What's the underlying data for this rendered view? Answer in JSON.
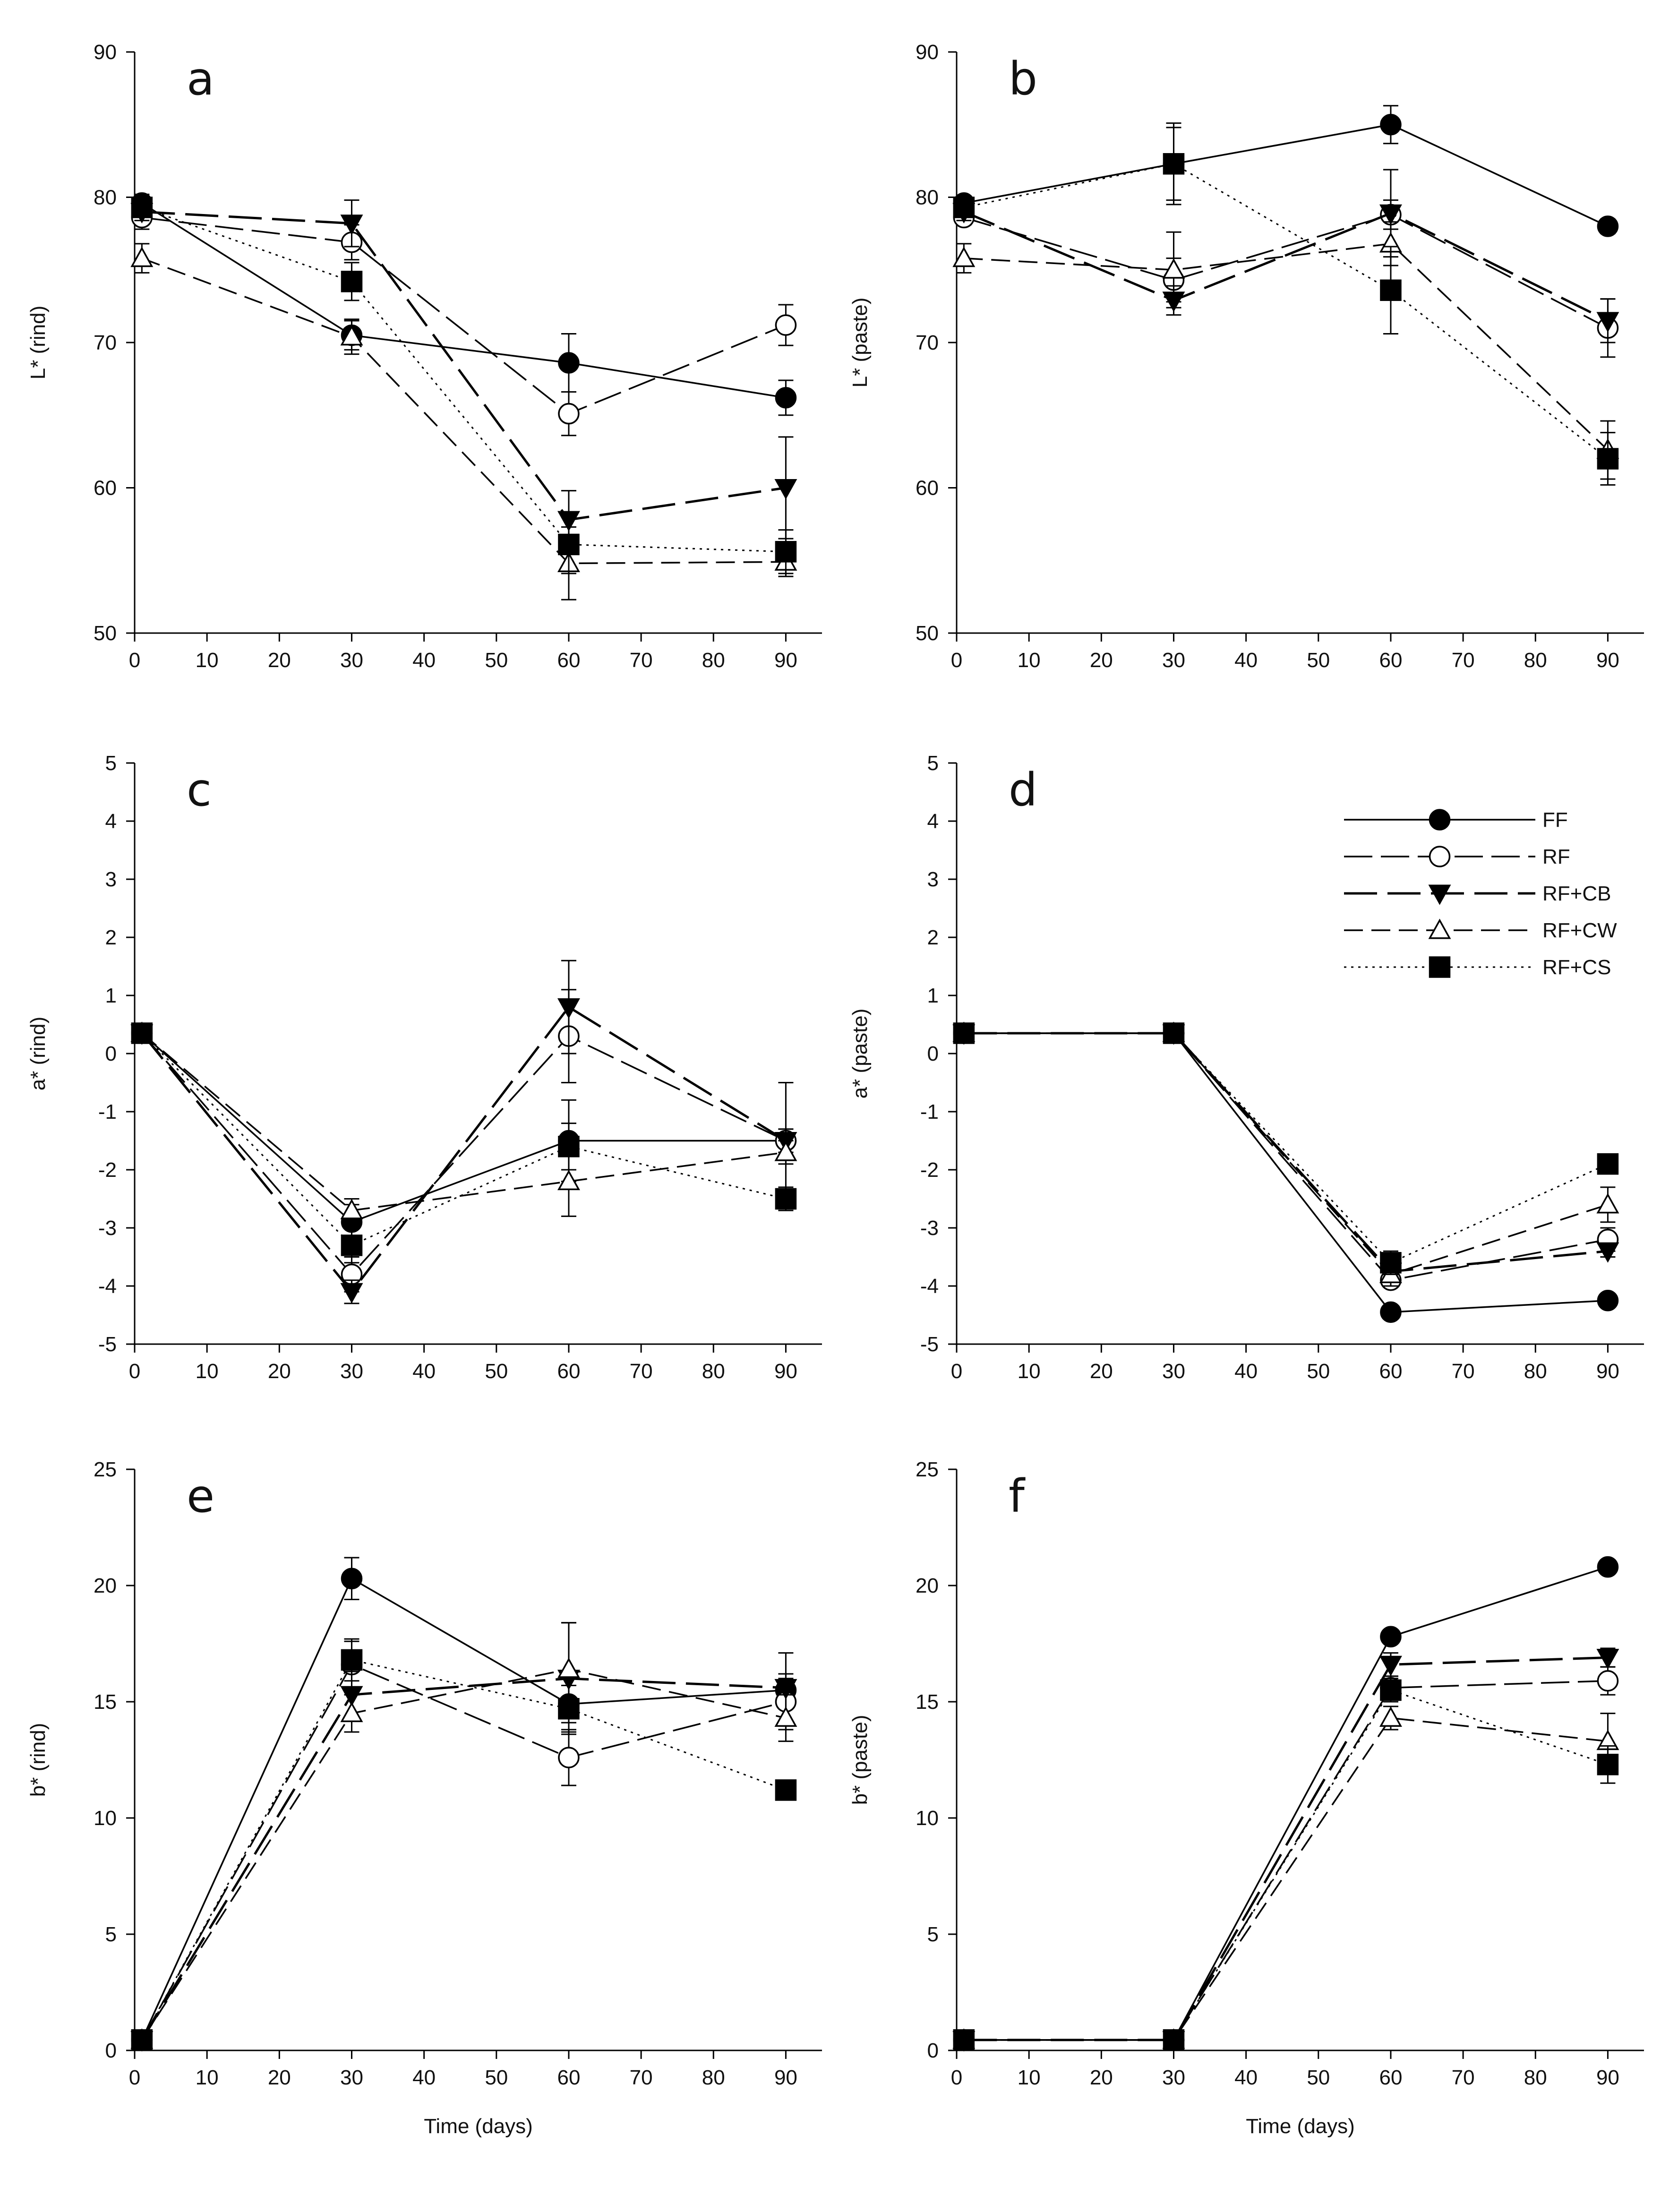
{
  "figure": {
    "legend": {
      "entries": [
        {
          "name": "FF",
          "marker": "filled-circle",
          "dash": "solid"
        },
        {
          "name": "RF",
          "marker": "open-circle",
          "dash": "long-dash"
        },
        {
          "name": "RF+CB",
          "marker": "filled-triangle-down",
          "dash": "dash-heavy"
        },
        {
          "name": "RF+CW",
          "marker": "open-triangle-up",
          "dash": "medium-dash"
        },
        {
          "name": "RF+CS",
          "marker": "filled-square",
          "dash": "dotted"
        }
      ]
    }
  },
  "chart_data": [
    {
      "panel": "a",
      "type": "line",
      "title": "",
      "xlabel": "",
      "ylabel": "L* (rind)",
      "xlim": [
        0,
        95
      ],
      "ylim": [
        50,
        90
      ],
      "xticks": [
        0,
        10,
        20,
        30,
        40,
        50,
        60,
        70,
        80,
        90
      ],
      "yticks": [
        50,
        60,
        70,
        80,
        90
      ],
      "x": [
        1,
        30,
        60,
        90
      ],
      "series": [
        {
          "name": "FF",
          "values": [
            79.6,
            70.5,
            68.6,
            66.2
          ],
          "errors": [
            0.6,
            1.0,
            2.0,
            1.2
          ]
        },
        {
          "name": "RF",
          "values": [
            78.6,
            76.9,
            65.1,
            71.2
          ],
          "errors": [
            0.8,
            1.2,
            1.5,
            1.4
          ]
        },
        {
          "name": "RF+CB",
          "values": [
            79.0,
            78.2,
            57.8,
            60.0
          ],
          "errors": [
            0.6,
            1.6,
            2.0,
            3.5
          ]
        },
        {
          "name": "RF+CW",
          "values": [
            75.8,
            70.4,
            54.8,
            54.9
          ],
          "errors": [
            1.0,
            1.2,
            2.5,
            1.0
          ]
        },
        {
          "name": "RF+CS",
          "values": [
            79.3,
            74.2,
            56.1,
            55.6
          ],
          "errors": [
            0.5,
            1.3,
            2.0,
            1.5
          ]
        }
      ]
    },
    {
      "panel": "b",
      "type": "line",
      "title": "",
      "xlabel": "",
      "ylabel": "L* (paste)",
      "xlim": [
        0,
        95
      ],
      "ylim": [
        50,
        90
      ],
      "xticks": [
        0,
        10,
        20,
        30,
        40,
        50,
        60,
        70,
        80,
        90
      ],
      "yticks": [
        50,
        60,
        70,
        80,
        90
      ],
      "x": [
        1,
        30,
        60,
        90
      ],
      "series": [
        {
          "name": "FF",
          "values": [
            79.6,
            82.3,
            85.0,
            78.0
          ],
          "errors": [
            0.5,
            2.8,
            1.3,
            0.5
          ]
        },
        {
          "name": "RF",
          "values": [
            78.6,
            74.3,
            78.8,
            71.0
          ],
          "errors": [
            0.5,
            1.5,
            1.0,
            2.0
          ]
        },
        {
          "name": "RF+CB",
          "values": [
            79.0,
            72.9,
            78.9,
            71.5
          ],
          "errors": [
            0.6,
            1.0,
            3.0,
            1.5
          ]
        },
        {
          "name": "RF+CW",
          "values": [
            75.8,
            75.0,
            76.8,
            62.6
          ],
          "errors": [
            1.0,
            2.6,
            1.5,
            2.0
          ]
        },
        {
          "name": "RF+CS",
          "values": [
            79.3,
            82.3,
            73.6,
            62.0
          ],
          "errors": [
            0.5,
            2.5,
            3.0,
            1.8
          ]
        }
      ]
    },
    {
      "panel": "c",
      "type": "line",
      "title": "",
      "xlabel": "",
      "ylabel": "a* (rind)",
      "xlim": [
        0,
        95
      ],
      "ylim": [
        -5,
        5
      ],
      "xticks": [
        0,
        10,
        20,
        30,
        40,
        50,
        60,
        70,
        80,
        90
      ],
      "yticks": [
        -5,
        -4,
        -3,
        -2,
        -1,
        0,
        1,
        2,
        3,
        4,
        5
      ],
      "x": [
        1,
        30,
        60,
        90
      ],
      "series": [
        {
          "name": "FF",
          "values": [
            0.35,
            -2.9,
            -1.5,
            -1.5
          ],
          "errors": [
            0.1,
            0.3,
            0.7,
            0.2
          ]
        },
        {
          "name": "RF",
          "values": [
            0.35,
            -3.8,
            0.3,
            -1.5
          ],
          "errors": [
            0.1,
            0.3,
            0.8,
            1.0
          ]
        },
        {
          "name": "RF+CB",
          "values": [
            0.35,
            -4.1,
            0.8,
            -1.5
          ],
          "errors": [
            0.1,
            0.2,
            0.8,
            0.2
          ]
        },
        {
          "name": "RF+CW",
          "values": [
            0.35,
            -2.7,
            -2.2,
            -1.7
          ],
          "errors": [
            0.1,
            0.2,
            0.6,
            0.2
          ]
        },
        {
          "name": "RF+CS",
          "values": [
            0.35,
            -3.3,
            -1.6,
            -2.5
          ],
          "errors": [
            0.1,
            0.3,
            0.4,
            0.2
          ]
        }
      ]
    },
    {
      "panel": "d",
      "type": "line",
      "title": "",
      "xlabel": "",
      "ylabel": "a* (paste)",
      "xlim": [
        0,
        95
      ],
      "ylim": [
        -5,
        5
      ],
      "xticks": [
        0,
        10,
        20,
        30,
        40,
        50,
        60,
        70,
        80,
        90
      ],
      "yticks": [
        -5,
        -4,
        -3,
        -2,
        -1,
        0,
        1,
        2,
        3,
        4,
        5
      ],
      "x": [
        1,
        30,
        60,
        90
      ],
      "series": [
        {
          "name": "FF",
          "values": [
            0.35,
            0.35,
            -4.45,
            -4.25
          ],
          "errors": [
            0.1,
            0.1,
            0.1,
            0.1
          ]
        },
        {
          "name": "RF",
          "values": [
            0.35,
            0.35,
            -3.9,
            -3.2
          ],
          "errors": [
            0.1,
            0.1,
            0.1,
            0.2
          ]
        },
        {
          "name": "RF+CB",
          "values": [
            0.35,
            0.35,
            -3.75,
            -3.4
          ],
          "errors": [
            0.1,
            0.1,
            0.1,
            0.1
          ]
        },
        {
          "name": "RF+CW",
          "values": [
            0.35,
            0.35,
            -3.8,
            -2.6
          ],
          "errors": [
            0.1,
            0.1,
            0.2,
            0.3
          ]
        },
        {
          "name": "RF+CS",
          "values": [
            0.35,
            0.35,
            -3.6,
            -1.9
          ],
          "errors": [
            0.1,
            0.1,
            0.2,
            0.1
          ]
        }
      ]
    },
    {
      "panel": "e",
      "type": "line",
      "title": "",
      "xlabel": "Time (days)",
      "ylabel": "b* (rind)",
      "xlim": [
        0,
        95
      ],
      "ylim": [
        0,
        25
      ],
      "xticks": [
        0,
        10,
        20,
        30,
        40,
        50,
        60,
        70,
        80,
        90
      ],
      "yticks": [
        0,
        5,
        10,
        15,
        20,
        25
      ],
      "x": [
        1,
        30,
        60,
        90
      ],
      "series": [
        {
          "name": "FF",
          "values": [
            0.45,
            20.3,
            14.9,
            15.5
          ],
          "errors": [
            0.2,
            0.9,
            0.8,
            0.5
          ]
        },
        {
          "name": "RF",
          "values": [
            0.45,
            16.6,
            12.6,
            15.0
          ],
          "errors": [
            0.2,
            1.0,
            1.2,
            1.2
          ]
        },
        {
          "name": "RF+CB",
          "values": [
            0.45,
            15.3,
            16.0,
            15.6
          ],
          "errors": [
            0.2,
            1.0,
            2.4,
            1.5
          ]
        },
        {
          "name": "RF+CW",
          "values": [
            0.45,
            14.5,
            16.4,
            14.3
          ],
          "errors": [
            0.2,
            0.8,
            2.0,
            1.0
          ]
        },
        {
          "name": "RF+CS",
          "values": [
            0.45,
            16.8,
            14.7,
            11.2
          ],
          "errors": [
            0.2,
            0.9,
            1.0,
            0.3
          ]
        }
      ]
    },
    {
      "panel": "f",
      "type": "line",
      "title": "",
      "xlabel": "Time (days)",
      "ylabel": "b* (paste)",
      "xlim": [
        0,
        95
      ],
      "ylim": [
        0,
        25
      ],
      "xticks": [
        0,
        10,
        20,
        30,
        40,
        50,
        60,
        70,
        80,
        90
      ],
      "yticks": [
        0,
        5,
        10,
        15,
        20,
        25
      ],
      "x": [
        1,
        30,
        60,
        90
      ],
      "series": [
        {
          "name": "FF",
          "values": [
            0.45,
            0.45,
            17.8,
            20.8
          ],
          "errors": [
            0.2,
            0.2,
            0.3,
            0.2
          ]
        },
        {
          "name": "RF",
          "values": [
            0.45,
            0.45,
            15.6,
            15.9
          ],
          "errors": [
            0.2,
            0.2,
            0.5,
            0.6
          ]
        },
        {
          "name": "RF+CB",
          "values": [
            0.45,
            0.45,
            16.6,
            16.9
          ],
          "errors": [
            0.2,
            0.2,
            0.5,
            0.4
          ]
        },
        {
          "name": "RF+CW",
          "values": [
            0.45,
            0.45,
            14.3,
            13.3
          ],
          "errors": [
            0.2,
            0.2,
            0.5,
            1.2
          ]
        },
        {
          "name": "RF+CS",
          "values": [
            0.45,
            0.45,
            15.5,
            12.3
          ],
          "errors": [
            0.2,
            0.2,
            0.5,
            0.8
          ]
        }
      ]
    }
  ]
}
